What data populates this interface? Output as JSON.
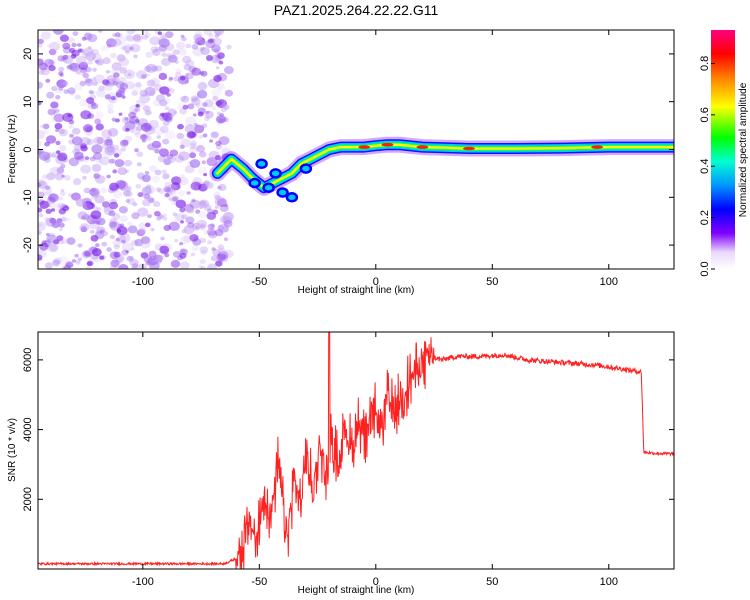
{
  "title": "PAZ1.2025.264.22.22.G11",
  "chart_data": [
    {
      "type": "heatmap",
      "name": "spectrogram",
      "xlabel": "Height of straight line (km)",
      "ylabel": "Frequency (Hz)",
      "xlim": [
        -145,
        128
      ],
      "ylim": [
        -25,
        25
      ],
      "xticks": [
        -100,
        -50,
        0,
        50,
        100
      ],
      "yticks": [
        -20,
        -10,
        0,
        10,
        20
      ],
      "noise_region_x": [
        -145,
        -63
      ],
      "signal_track": [
        {
          "x": -68,
          "y": -5
        },
        {
          "x": -62,
          "y": -2
        },
        {
          "x": -57,
          "y": -4
        },
        {
          "x": -53,
          "y": -6
        },
        {
          "x": -48,
          "y": -8
        },
        {
          "x": -44,
          "y": -7
        },
        {
          "x": -40,
          "y": -6
        },
        {
          "x": -36,
          "y": -5
        },
        {
          "x": -32,
          "y": -3
        },
        {
          "x": -28,
          "y": -2
        },
        {
          "x": -24,
          "y": -1
        },
        {
          "x": -20,
          "y": 0
        },
        {
          "x": -15,
          "y": 0.5
        },
        {
          "x": -10,
          "y": 0.5
        },
        {
          "x": -5,
          "y": 0.5
        },
        {
          "x": 0,
          "y": 0.8
        },
        {
          "x": 5,
          "y": 1
        },
        {
          "x": 10,
          "y": 1
        },
        {
          "x": 20,
          "y": 0.5
        },
        {
          "x": 40,
          "y": 0.2
        },
        {
          "x": 60,
          "y": 0.2
        },
        {
          "x": 80,
          "y": 0.3
        },
        {
          "x": 100,
          "y": 0.5
        },
        {
          "x": 128,
          "y": 0.5
        }
      ],
      "colorbar": {
        "label": "Normalized spectral amplitude",
        "range": [
          0,
          0.93
        ],
        "ticks": [
          "0.0",
          "0.2",
          "0.4",
          "0.6",
          "0.8"
        ]
      }
    },
    {
      "type": "line",
      "name": "snr",
      "xlabel": "Height of straight line (km)",
      "ylabel": "SNR (10 * v/v)",
      "xlim": [
        -145,
        128
      ],
      "ylim": [
        0,
        6800
      ],
      "xticks": [
        -100,
        -50,
        0,
        50,
        100
      ],
      "yticks": [
        2000,
        4000,
        6000
      ],
      "color": "#ff2020",
      "series": [
        {
          "name": "SNR",
          "x": [
            -145,
            -100,
            -65,
            -60,
            -57,
            -54,
            -51,
            -48,
            -45,
            -42,
            -38,
            -35,
            -32,
            -30,
            -27,
            -24,
            -21,
            -19,
            -16,
            -13,
            -10,
            -7,
            -4,
            -1,
            2,
            5,
            8,
            12,
            16,
            20,
            24,
            28,
            35,
            45,
            55,
            65,
            75,
            85,
            95,
            105,
            114,
            115,
            120,
            128
          ],
          "y": [
            150,
            150,
            150,
            300,
            500,
            1400,
            700,
            2200,
            1500,
            3000,
            900,
            2600,
            1800,
            3400,
            2200,
            3700,
            2500,
            3800,
            3000,
            4100,
            3400,
            4300,
            3600,
            4600,
            4000,
            4900,
            4500,
            5100,
            5600,
            5900,
            6100,
            6000,
            6100,
            6100,
            6150,
            6000,
            5950,
            5900,
            5850,
            5750,
            5650,
            3350,
            3320,
            3300
          ]
        }
      ],
      "spike": {
        "x": -20,
        "y": 6800
      }
    }
  ],
  "colors": {
    "line": "#ff2020",
    "noise": "#8a2be2"
  }
}
